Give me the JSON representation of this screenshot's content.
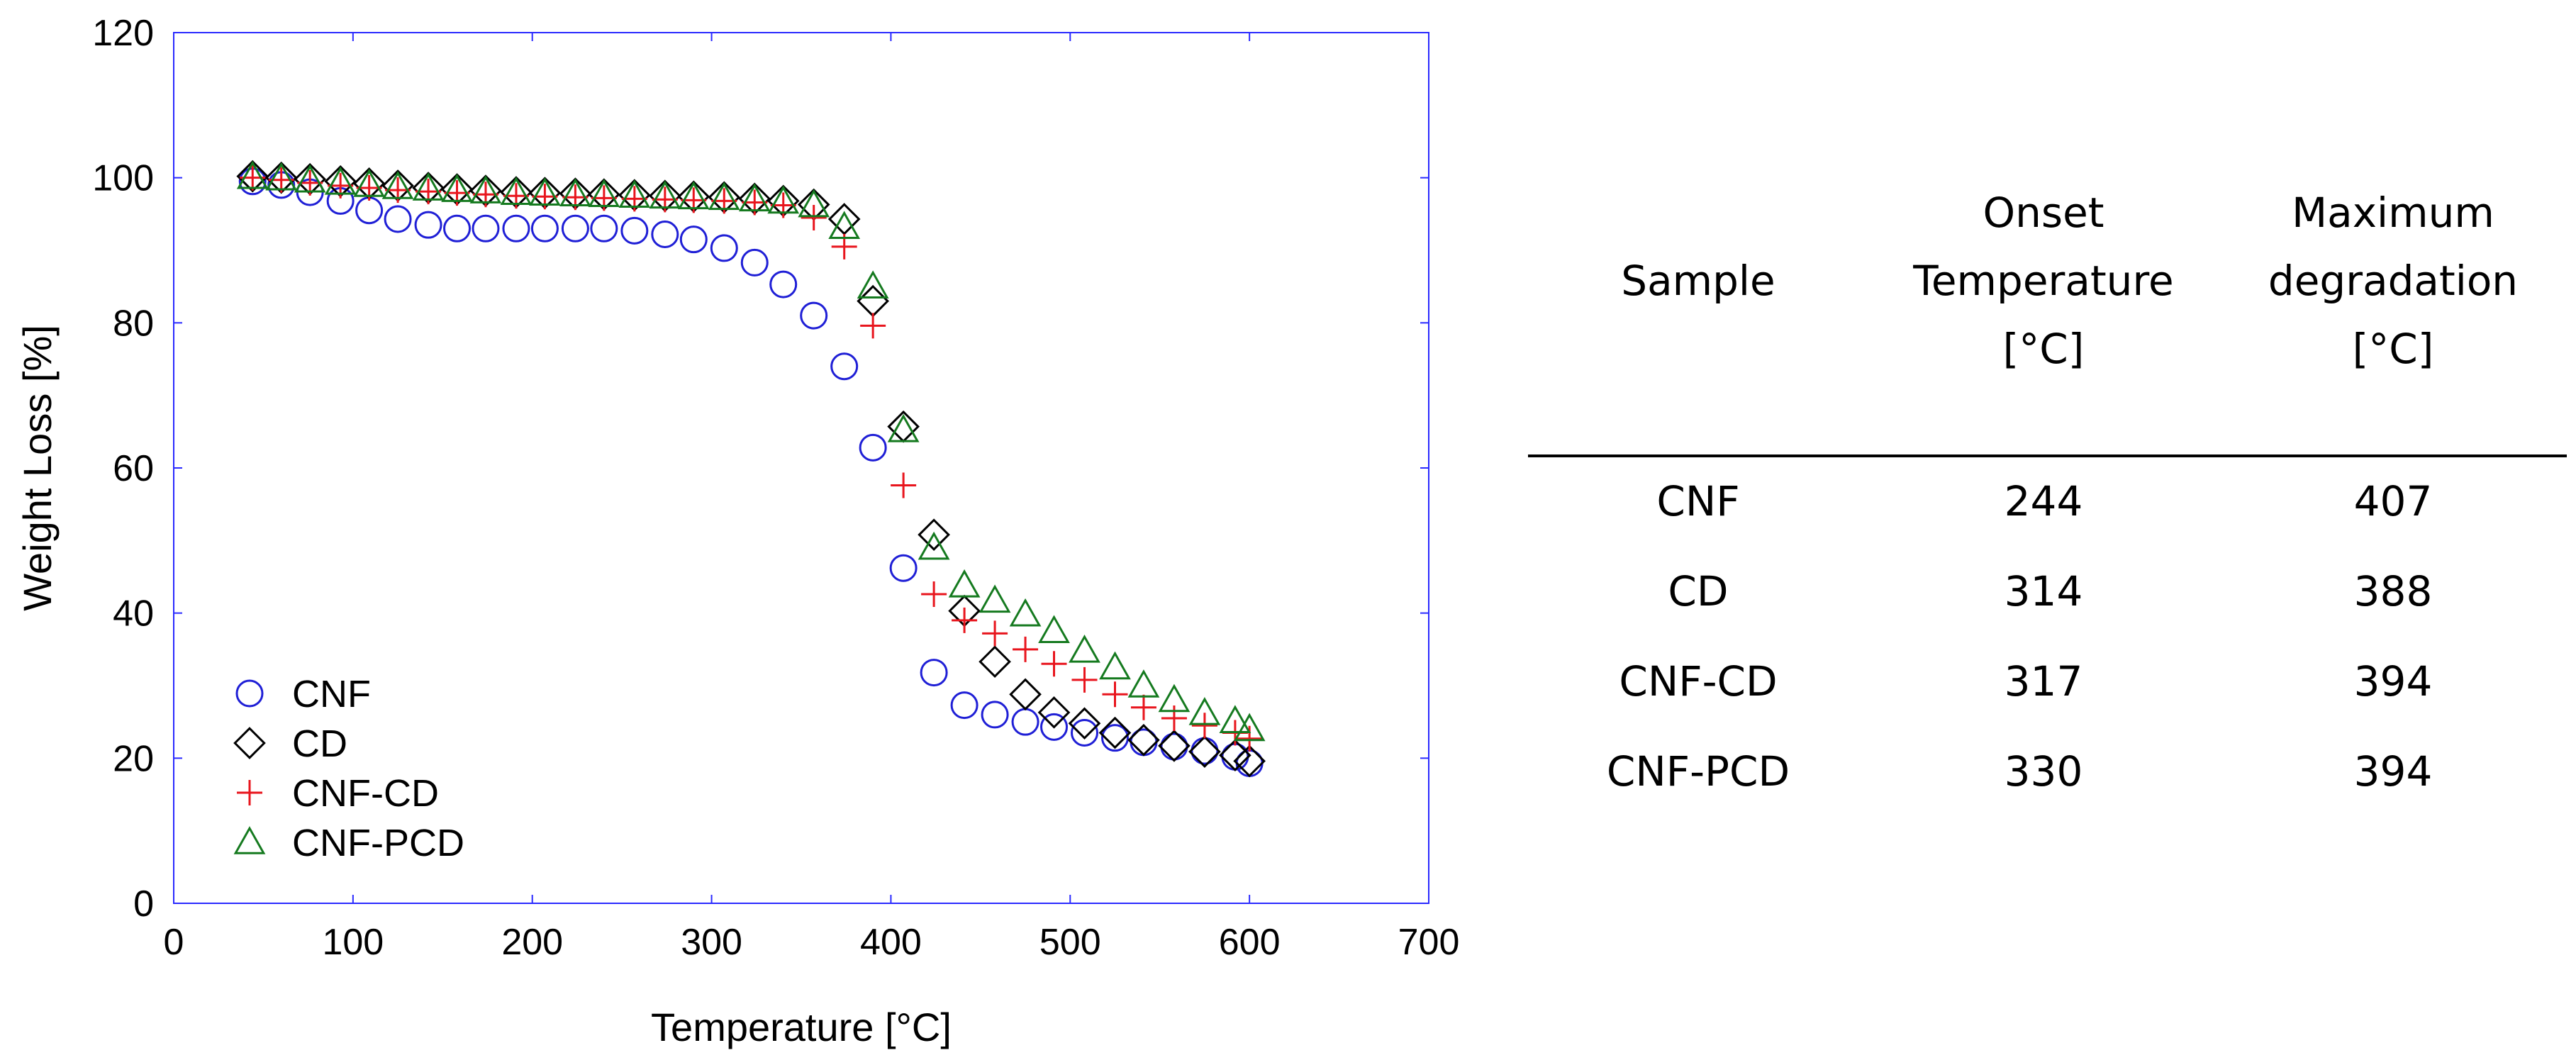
{
  "chart_data": {
    "type": "scatter",
    "xlabel": "Temperature [°C]",
    "ylabel": "Weight Loss [%]",
    "xlim": [
      0,
      700
    ],
    "ylim": [
      0,
      120
    ],
    "xticks": [
      0,
      100,
      200,
      300,
      400,
      500,
      600,
      700
    ],
    "yticks": [
      0,
      20,
      40,
      60,
      80,
      100,
      120
    ],
    "legend_position": "bottom-left",
    "series": [
      {
        "name": "CNF",
        "marker": "circle",
        "color": "#1f1fd6",
        "x": [
          44,
          60,
          76,
          93,
          109,
          125,
          142,
          158,
          174,
          191,
          207,
          224,
          240,
          257,
          274,
          290,
          307,
          324,
          340,
          357,
          374,
          390,
          407,
          424,
          441,
          458,
          475,
          491,
          508,
          525,
          541,
          558,
          575,
          592,
          600
        ],
        "y": [
          99.5,
          99,
          98,
          96.8,
          95.5,
          94.3,
          93.5,
          93,
          93,
          93,
          93,
          93,
          93,
          92.7,
          92.2,
          91.5,
          90.3,
          88.3,
          85.3,
          81,
          74,
          62.8,
          46.2,
          31.8,
          27.3,
          26,
          25,
          24.3,
          23.5,
          22.8,
          22.2,
          21.6,
          21,
          20.2,
          19.3
        ]
      },
      {
        "name": "CD",
        "marker": "diamond",
        "color": "#000000",
        "x": [
          44,
          60,
          76,
          93,
          109,
          125,
          142,
          158,
          174,
          191,
          207,
          224,
          240,
          257,
          274,
          290,
          307,
          324,
          340,
          357,
          374,
          390,
          407,
          424,
          441,
          458,
          475,
          491,
          508,
          525,
          541,
          558,
          575,
          592,
          600
        ],
        "y": [
          100.2,
          100,
          99.8,
          99.5,
          99.2,
          98.9,
          98.6,
          98.4,
          98.2,
          98,
          97.9,
          97.8,
          97.7,
          97.6,
          97.5,
          97.4,
          97.3,
          97.1,
          96.8,
          96.3,
          94.3,
          83,
          65.7,
          50.8,
          40.3,
          33.3,
          28.8,
          26.3,
          24.8,
          23.5,
          22.5,
          21.7,
          20.9,
          20.4,
          19.6
        ]
      },
      {
        "name": "CNF-CD",
        "marker": "plus",
        "color": "#e8151d",
        "x": [
          44,
          60,
          76,
          93,
          109,
          125,
          142,
          158,
          174,
          191,
          207,
          224,
          240,
          257,
          274,
          290,
          307,
          324,
          340,
          357,
          374,
          390,
          407,
          424,
          441,
          458,
          475,
          491,
          508,
          525,
          541,
          558,
          575,
          592,
          600
        ],
        "y": [
          100,
          99.7,
          99.3,
          98.9,
          98.6,
          98.3,
          98.1,
          97.9,
          97.7,
          97.5,
          97.4,
          97.3,
          97.2,
          97.1,
          97,
          96.9,
          96.8,
          96.6,
          96.2,
          94.5,
          90.5,
          79.6,
          57.6,
          42.6,
          39,
          37.2,
          35,
          33,
          30.8,
          28.8,
          27,
          25.5,
          24.5,
          23.5,
          22.7
        ]
      },
      {
        "name": "CNF-PCD",
        "marker": "triangle",
        "color": "#157a1f",
        "x": [
          44,
          60,
          76,
          93,
          109,
          125,
          142,
          158,
          174,
          191,
          207,
          224,
          240,
          257,
          274,
          290,
          307,
          324,
          340,
          357,
          374,
          390,
          407,
          424,
          441,
          458,
          475,
          491,
          508,
          525,
          541,
          558,
          575,
          592,
          600
        ],
        "y": [
          100.1,
          99.9,
          99.6,
          99.3,
          99,
          98.7,
          98.5,
          98.3,
          98.1,
          97.9,
          97.8,
          97.7,
          97.6,
          97.5,
          97.4,
          97.3,
          97.2,
          97,
          96.7,
          96.2,
          93.2,
          85,
          65.2,
          49,
          43.8,
          41.7,
          39.8,
          37.5,
          34.8,
          32.5,
          30,
          28,
          26.2,
          25.1,
          24
        ]
      }
    ]
  },
  "table": {
    "headers": [
      [
        "Sample"
      ],
      [
        "Onset",
        "Temperature",
        "[°C]"
      ],
      [
        "Maximum",
        "degradation",
        "[°C]"
      ]
    ],
    "rows": [
      [
        "CNF",
        "244",
        "407"
      ],
      [
        "CD",
        "314",
        "388"
      ],
      [
        "CNF-CD",
        "317",
        "394"
      ],
      [
        "CNF-PCD",
        "330",
        "394"
      ]
    ]
  }
}
